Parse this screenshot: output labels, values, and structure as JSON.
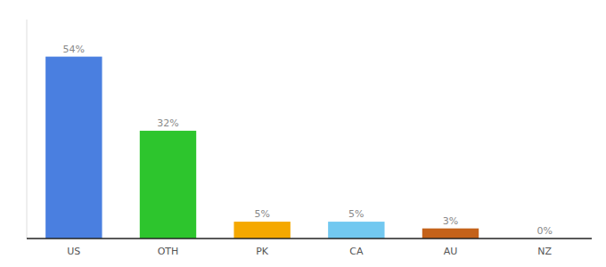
{
  "chart_data": {
    "type": "bar",
    "categories": [
      "US",
      "OTH",
      "PK",
      "CA",
      "AU",
      "NZ"
    ],
    "values": [
      54,
      32,
      5,
      5,
      3,
      0
    ],
    "value_labels": [
      "54%",
      "32%",
      "5%",
      "5%",
      "3%",
      "0%"
    ],
    "colors": [
      "#4a7fe0",
      "#2dc52d",
      "#f5a800",
      "#72c8f0",
      "#c4621a",
      "#b0b0b0"
    ],
    "ylim": [
      0,
      65
    ],
    "data_labels": true,
    "tick_labels": "x"
  }
}
